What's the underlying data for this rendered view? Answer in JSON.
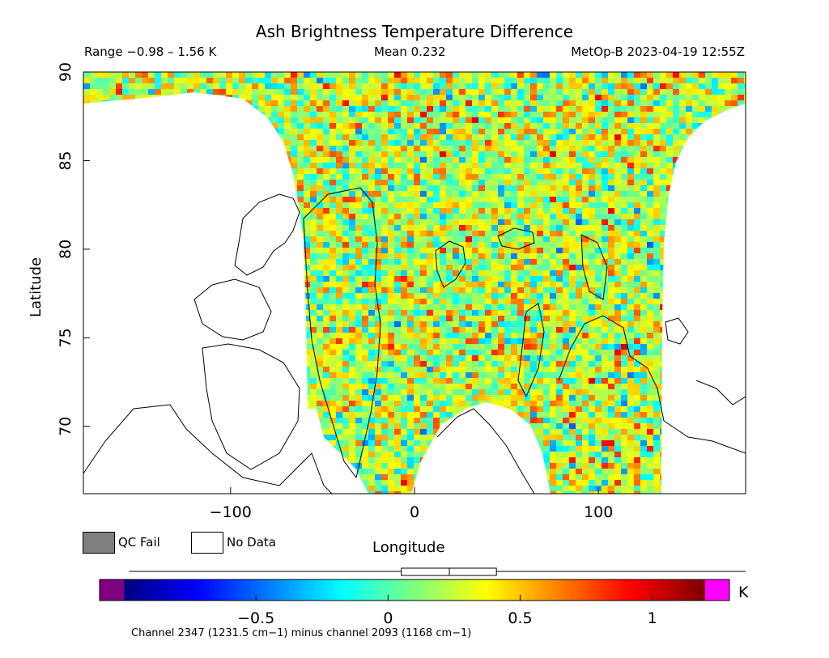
{
  "header": {
    "title": "Ash Brightness Temperature Difference",
    "range": "Range −0.98 – 1.56 K",
    "mean": "Mean 0.232",
    "satellite": "MetOp-B 2023-04-19 12:55Z"
  },
  "chart_data": {
    "type": "heatmap",
    "title": "Ash Brightness Temperature Difference",
    "xlabel": "Longitude",
    "ylabel": "Latitude",
    "xlim": [
      -180,
      180
    ],
    "ylim": [
      66.2,
      90
    ],
    "xticks": [
      -100,
      0,
      100
    ],
    "yticks": [
      70,
      75,
      80,
      85,
      90
    ],
    "stats": {
      "min": -0.98,
      "max": 1.56,
      "mean": 0.232
    },
    "colorbar": {
      "range": [
        -1,
        1.2
      ],
      "ticks": [
        -0.5,
        0,
        0.5,
        1
      ],
      "unit": "K",
      "underflow_color": "#800080",
      "overflow_color": "#ff00ff",
      "box_whisker": {
        "min": -0.98,
        "q1": 0.05,
        "median": 0.232,
        "q3": 0.41,
        "max": 1.56
      }
    },
    "legend": {
      "qc_fail": "QC Fail",
      "no_data": "No Data",
      "qc_fail_color": "#7f7f7f",
      "no_data_color": "#ffffff"
    },
    "note": "Channel 2347 (1231.5 cm−1) minus channel 2093 (1168 cm−1)"
  }
}
